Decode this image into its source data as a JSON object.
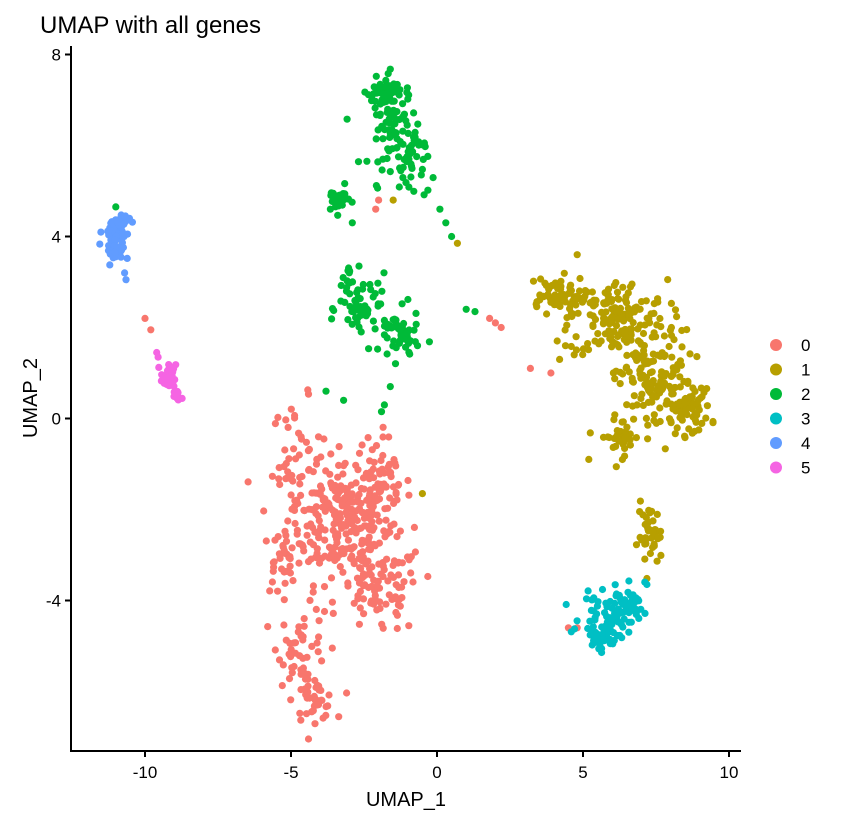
{
  "chart_data": {
    "type": "scatter",
    "title": "UMAP with all genes",
    "xlabel": "UMAP_1",
    "ylabel": "UMAP_2",
    "xlim": [
      -12.5,
      10.5
    ],
    "ylim": [
      -7.4,
      8.1
    ],
    "xticks": [
      -10,
      -5,
      0,
      5,
      10
    ],
    "yticks": [
      -4,
      0,
      4,
      8
    ],
    "grid": false,
    "legend_position": "right",
    "legend_title": "",
    "series": [
      {
        "name": "0",
        "color": "#F8766D",
        "clusters": [
          {
            "center": [
              -3.3,
              -2.2
            ],
            "spread": [
              1.3,
              1.0
            ],
            "n": 250
          },
          {
            "center": [
              -4.8,
              -1.0
            ],
            "spread": [
              0.6,
              1.0
            ],
            "n": 45
          },
          {
            "center": [
              -2.0,
              -1.5
            ],
            "spread": [
              0.8,
              0.8
            ],
            "n": 70
          },
          {
            "center": [
              -2.0,
              -3.8
            ],
            "spread": [
              1.0,
              0.7
            ],
            "n": 90
          },
          {
            "center": [
              -4.6,
              -5.0
            ],
            "spread": [
              0.6,
              0.6
            ],
            "n": 45
          },
          {
            "center": [
              -4.2,
              -6.2
            ],
            "spread": [
              0.5,
              0.3
            ],
            "n": 40
          },
          {
            "center": [
              -5.4,
              -3.2
            ],
            "spread": [
              0.4,
              0.5
            ],
            "n": 25
          }
        ],
        "points": [
          [
            -10.0,
            2.2
          ],
          [
            -9.8,
            1.95
          ],
          [
            -2.0,
            4.8
          ],
          [
            -2.1,
            4.6
          ],
          [
            1.8,
            2.2
          ],
          [
            2.0,
            2.1
          ],
          [
            2.2,
            2.0
          ],
          [
            3.2,
            1.1
          ],
          [
            3.9,
            1.0
          ],
          [
            4.8,
            -4.6
          ],
          [
            4.5,
            -4.6
          ]
        ]
      },
      {
        "name": "1",
        "color": "#B79F00",
        "clusters": [
          {
            "center": [
              6.2,
              2.2
            ],
            "spread": [
              1.2,
              0.6
            ],
            "n": 160
          },
          {
            "center": [
              4.0,
              2.7
            ],
            "spread": [
              0.8,
              0.3
            ],
            "n": 60
          },
          {
            "center": [
              7.5,
              0.8
            ],
            "spread": [
              0.9,
              0.8
            ],
            "n": 140
          },
          {
            "center": [
              8.7,
              0.2
            ],
            "spread": [
              0.5,
              0.4
            ],
            "n": 50
          },
          {
            "center": [
              6.3,
              -0.4
            ],
            "spread": [
              0.5,
              0.3
            ],
            "n": 35
          },
          {
            "center": [
              7.3,
              -2.6
            ],
            "spread": [
              0.3,
              0.5
            ],
            "n": 40
          }
        ],
        "points": [
          [
            -1.5,
            4.8
          ],
          [
            0.7,
            3.85
          ],
          [
            -0.5,
            -1.65
          ],
          [
            4.8,
            3.6
          ],
          [
            4.4,
            1.6
          ],
          [
            4.2,
            1.3
          ],
          [
            4.7,
            1.4
          ],
          [
            5.2,
            -0.9
          ]
        ]
      },
      {
        "name": "2",
        "color": "#00BA38",
        "clusters": [
          {
            "center": [
              -1.5,
              6.5
            ],
            "spread": [
              0.6,
              0.7
            ],
            "n": 90
          },
          {
            "center": [
              -1.8,
              7.2
            ],
            "spread": [
              0.4,
              0.15
            ],
            "n": 35
          },
          {
            "center": [
              -0.8,
              5.6
            ],
            "spread": [
              0.35,
              0.6
            ],
            "n": 35
          },
          {
            "center": [
              -3.4,
              4.8
            ],
            "spread": [
              0.3,
              0.2
            ],
            "n": 25
          },
          {
            "center": [
              -2.5,
              2.4
            ],
            "spread": [
              0.6,
              0.5
            ],
            "n": 55
          },
          {
            "center": [
              -1.3,
              1.8
            ],
            "spread": [
              0.5,
              0.4
            ],
            "n": 50
          },
          {
            "center": [
              -3.0,
              3.0
            ],
            "spread": [
              0.3,
              0.4
            ],
            "n": 12
          }
        ],
        "points": [
          [
            0.1,
            4.6
          ],
          [
            0.3,
            4.3
          ],
          [
            0.5,
            4.0
          ],
          [
            -2.9,
            4.3
          ],
          [
            1.0,
            2.4
          ],
          [
            1.3,
            2.35
          ],
          [
            -3.8,
            0.6
          ],
          [
            -3.2,
            0.4
          ],
          [
            -1.6,
            0.7
          ],
          [
            -1.8,
            0.3
          ],
          [
            -1.9,
            0.15
          ],
          [
            -11.0,
            4.65
          ]
        ]
      },
      {
        "name": "3",
        "color": "#00BFC4",
        "clusters": [
          {
            "center": [
              5.9,
              -4.4
            ],
            "spread": [
              0.7,
              0.35
            ],
            "n": 80
          },
          {
            "center": [
              6.6,
              -3.9
            ],
            "spread": [
              0.4,
              0.3
            ],
            "n": 25
          },
          {
            "center": [
              5.6,
              -4.9
            ],
            "spread": [
              0.4,
              0.15
            ],
            "n": 20
          }
        ],
        "points": []
      },
      {
        "name": "4",
        "color": "#619CFF",
        "clusters": [
          {
            "center": [
              -11.1,
              4.1
            ],
            "spread": [
              0.25,
              0.25
            ],
            "n": 40
          },
          {
            "center": [
              -11.0,
              3.7
            ],
            "spread": [
              0.2,
              0.25
            ],
            "n": 25
          },
          {
            "center": [
              -10.8,
              4.35
            ],
            "spread": [
              0.2,
              0.12
            ],
            "n": 15
          }
        ],
        "points": [
          [
            -10.7,
            3.2
          ],
          [
            -10.65,
            3.05
          ]
        ]
      },
      {
        "name": "5",
        "color": "#F564E3",
        "clusters": [
          {
            "center": [
              -9.2,
              0.9
            ],
            "spread": [
              0.18,
              0.2
            ],
            "n": 30
          },
          {
            "center": [
              -8.95,
              0.45
            ],
            "spread": [
              0.15,
              0.12
            ],
            "n": 10
          }
        ],
        "points": [
          [
            -9.6,
            1.45
          ],
          [
            -9.55,
            1.35
          ]
        ]
      }
    ]
  }
}
